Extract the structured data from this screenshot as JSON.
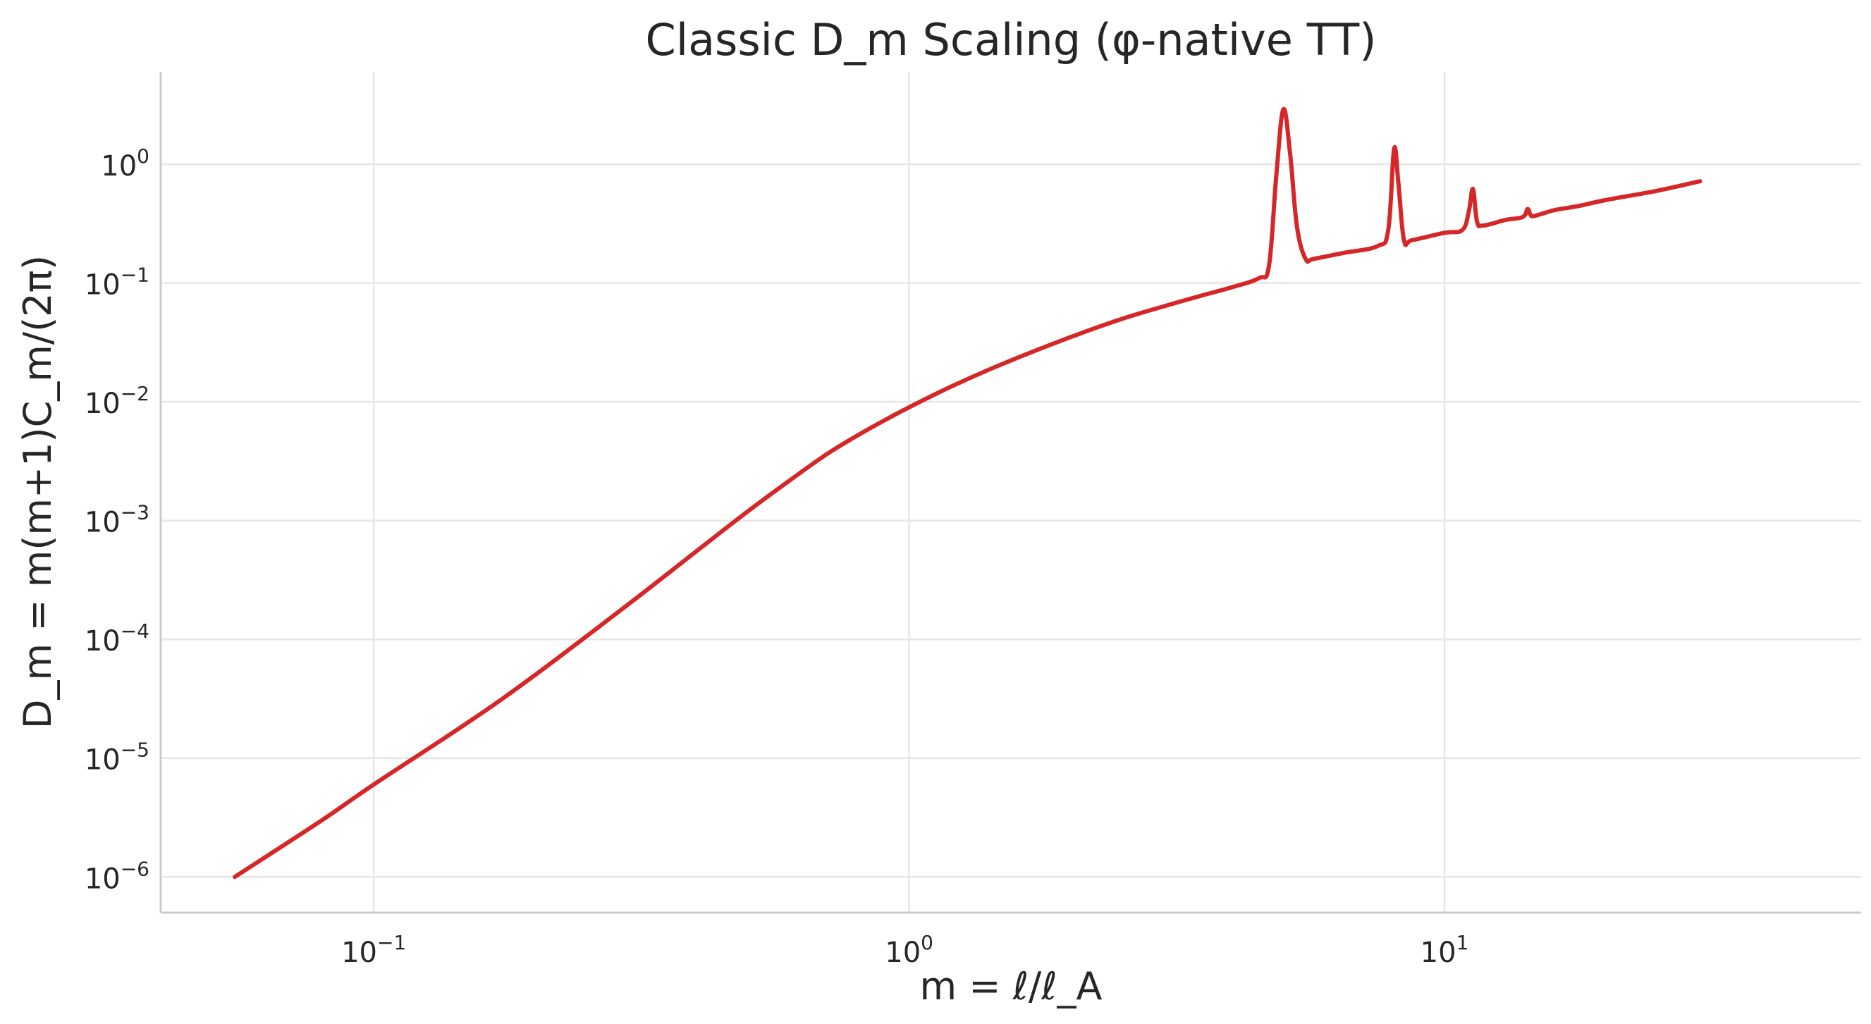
{
  "chart_data": {
    "type": "line",
    "title": "Classic D_m Scaling (φ-native TT)",
    "xlabel": "m = ℓ/ℓ_A",
    "ylabel": "D_m = m(m+1)C_m/(2π)",
    "xscale": "log",
    "yscale": "log",
    "xlim": [
      0.04,
      60
    ],
    "ylim": [
      5e-07,
      6
    ],
    "grid": true,
    "legend": "none",
    "line_color": "#d62728",
    "x_ticks": [
      {
        "value": 0.1,
        "base": "10",
        "exp": "−1"
      },
      {
        "value": 1,
        "base": "10",
        "exp": "0"
      },
      {
        "value": 10,
        "base": "10",
        "exp": "1"
      }
    ],
    "y_ticks": [
      {
        "value": 1,
        "base": "10",
        "exp": "0"
      },
      {
        "value": 0.1,
        "base": "10",
        "exp": "−1"
      },
      {
        "value": 0.01,
        "base": "10",
        "exp": "−2"
      },
      {
        "value": 0.001,
        "base": "10",
        "exp": "−3"
      },
      {
        "value": 0.0001,
        "base": "10",
        "exp": "−4"
      },
      {
        "value": 1e-05,
        "base": "10",
        "exp": "−5"
      },
      {
        "value": 1e-06,
        "base": "10",
        "exp": "−6"
      }
    ],
    "series": [
      {
        "x": [
          0.055,
          0.08,
          0.1,
          0.15,
          0.2,
          0.3,
          0.4,
          0.5,
          0.6,
          0.7,
          0.8,
          0.9,
          1.0,
          1.2,
          1.5,
          2.0,
          2.5,
          3.0,
          3.5,
          4.0,
          4.5,
          4.7,
          4.85,
          5.0,
          5.15,
          5.3,
          5.5,
          5.7,
          6.5,
          7.5,
          7.85,
          8.05,
          8.2,
          8.4,
          8.7,
          10.0,
          10.8,
          11.1,
          11.3,
          11.5,
          11.8,
          13.0,
          14.0,
          14.3,
          14.5,
          14.8,
          16.0,
          17.0,
          17.5,
          18.0,
          20.0,
          25.0,
          30.0
        ],
        "y": [
          1e-06,
          3e-06,
          6e-06,
          2e-05,
          5e-05,
          0.0002,
          0.00055,
          0.0012,
          0.0022,
          0.0036,
          0.0052,
          0.007,
          0.009,
          0.0135,
          0.021,
          0.035,
          0.05,
          0.064,
          0.078,
          0.092,
          0.11,
          0.14,
          0.8,
          2.9,
          1.2,
          0.3,
          0.16,
          0.16,
          0.18,
          0.205,
          0.28,
          1.35,
          0.7,
          0.23,
          0.23,
          0.265,
          0.28,
          0.4,
          0.62,
          0.33,
          0.305,
          0.34,
          0.36,
          0.42,
          0.37,
          0.37,
          0.41,
          0.43,
          0.44,
          0.45,
          0.5,
          0.6,
          0.72
        ]
      }
    ]
  }
}
